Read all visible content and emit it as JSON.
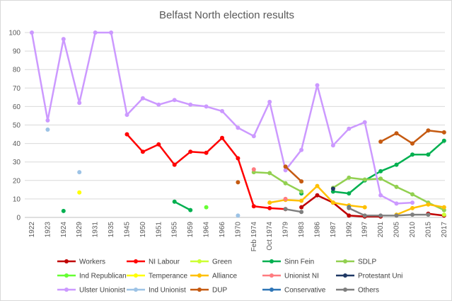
{
  "chart_data": {
    "type": "line",
    "title": "Belfast North election results",
    "xlabel": "",
    "ylabel": "",
    "ylim": [
      0,
      100
    ],
    "yticks": [
      "0",
      "10",
      "20",
      "30",
      "40",
      "50",
      "60",
      "70",
      "80",
      "90",
      "100"
    ],
    "grid": "horizontal",
    "legend_position": "bottom",
    "categories": [
      "1922",
      "1923",
      "1924",
      "1929",
      "1931",
      "1935",
      "1945",
      "1950",
      "1951",
      "1955",
      "1959",
      "1964",
      "1966",
      "1970",
      "Feb 1974",
      "Oct 1974",
      "1979",
      "1983",
      "1986",
      "1987",
      "1992",
      "1997",
      "2001",
      "2005",
      "2010",
      "2015",
      "2017"
    ],
    "series": [
      {
        "name": "Workers",
        "color": "#c00000",
        "values": [
          null,
          null,
          null,
          null,
          null,
          null,
          null,
          null,
          null,
          null,
          null,
          null,
          null,
          null,
          null,
          null,
          null,
          5.5,
          12,
          8,
          1,
          0.5,
          0.5,
          null,
          null,
          2,
          1
        ]
      },
      {
        "name": "NI Labour",
        "color": "#ff0000",
        "values": [
          null,
          null,
          null,
          null,
          null,
          null,
          45,
          35.5,
          39.5,
          28.5,
          35.5,
          35,
          43,
          32,
          6,
          5,
          4.5,
          null,
          null,
          null,
          null,
          null,
          null,
          null,
          null,
          null,
          null
        ]
      },
      {
        "name": "Green",
        "color": "#ccff33",
        "values": [
          null,
          null,
          null,
          null,
          null,
          null,
          null,
          null,
          null,
          null,
          null,
          null,
          null,
          null,
          null,
          null,
          null,
          null,
          null,
          null,
          null,
          null,
          null,
          null,
          null,
          null,
          1.5
        ]
      },
      {
        "name": "Sinn Fein",
        "color": "#00b050",
        "values": [
          null,
          null,
          3.5,
          null,
          null,
          null,
          null,
          null,
          null,
          8.5,
          4,
          null,
          null,
          null,
          null,
          null,
          null,
          13,
          null,
          14,
          13,
          20,
          25,
          28.5,
          34,
          34,
          41.5
        ]
      },
      {
        "name": "SDLP",
        "color": "#92d050",
        "values": [
          null,
          null,
          null,
          null,
          null,
          null,
          null,
          null,
          null,
          null,
          null,
          null,
          null,
          null,
          24.5,
          24,
          18.5,
          14,
          null,
          16,
          21.5,
          20.5,
          21,
          16.5,
          12.5,
          8,
          4
        ]
      },
      {
        "name": "Ind Republican",
        "color": "#66ff33",
        "values": [
          null,
          null,
          null,
          null,
          null,
          null,
          null,
          null,
          null,
          null,
          null,
          5.5,
          null,
          null,
          null,
          null,
          null,
          null,
          null,
          null,
          null,
          null,
          null,
          null,
          null,
          null,
          null
        ]
      },
      {
        "name": "Temperance",
        "color": "#ffff00",
        "values": [
          null,
          null,
          null,
          13.5,
          null,
          null,
          null,
          null,
          null,
          null,
          null,
          null,
          null,
          null,
          null,
          null,
          null,
          null,
          null,
          null,
          null,
          null,
          null,
          null,
          null,
          null,
          null
        ]
      },
      {
        "name": "Alliance",
        "color": "#ffc000",
        "values": [
          null,
          null,
          null,
          null,
          null,
          null,
          null,
          null,
          null,
          null,
          null,
          null,
          null,
          null,
          null,
          8,
          9.5,
          9,
          17,
          8,
          6.5,
          5.5,
          null,
          1.5,
          5,
          7,
          5.5
        ]
      },
      {
        "name": "Unionist NI",
        "color": "#ff7c80",
        "values": [
          null,
          null,
          null,
          null,
          null,
          null,
          null,
          null,
          null,
          null,
          null,
          null,
          null,
          null,
          26,
          null,
          10,
          null,
          null,
          null,
          null,
          null,
          null,
          null,
          null,
          null,
          null
        ]
      },
      {
        "name": "Protestant Uni",
        "color": "#1f3864",
        "values": [
          null,
          null,
          null,
          null,
          null,
          null,
          null,
          null,
          null,
          null,
          null,
          null,
          null,
          null,
          null,
          null,
          null,
          null,
          null,
          15.5,
          null,
          null,
          null,
          null,
          null,
          null,
          null
        ]
      },
      {
        "name": "Ulster Unionist",
        "color": "#cc99ff",
        "values": [
          100,
          52.5,
          96.5,
          62,
          100,
          100,
          55.5,
          64.5,
          61,
          63.5,
          61,
          60,
          57.5,
          48.5,
          44,
          62.5,
          25.5,
          36.5,
          71.5,
          39,
          48,
          51.5,
          12,
          7.5,
          8,
          null,
          null
        ]
      },
      {
        "name": "Ind Unionist",
        "color": "#9dc3e6",
        "values": [
          null,
          47.5,
          null,
          24.5,
          null,
          null,
          null,
          null,
          null,
          null,
          null,
          null,
          null,
          1,
          null,
          null,
          null,
          null,
          null,
          null,
          null,
          null,
          null,
          null,
          null,
          null,
          null
        ]
      },
      {
        "name": "DUP",
        "color": "#c55a11",
        "values": [
          null,
          null,
          null,
          null,
          null,
          null,
          null,
          null,
          null,
          null,
          null,
          null,
          null,
          19,
          null,
          null,
          27.5,
          19.5,
          null,
          null,
          null,
          null,
          41,
          45.5,
          40,
          47,
          46
        ]
      },
      {
        "name": "Conservative",
        "color": "#2e75b6",
        "values": [
          null,
          null,
          null,
          null,
          null,
          null,
          null,
          null,
          null,
          null,
          null,
          null,
          null,
          null,
          null,
          null,
          null,
          null,
          null,
          null,
          5.5,
          null,
          null,
          null,
          null,
          null,
          null
        ]
      },
      {
        "name": "Others",
        "color": "#7f7f7f",
        "values": [
          null,
          null,
          null,
          null,
          null,
          null,
          null,
          null,
          null,
          null,
          null,
          null,
          null,
          null,
          null,
          null,
          4.5,
          3,
          null,
          null,
          5,
          1,
          1,
          1,
          1.5,
          1.5,
          null
        ]
      }
    ]
  }
}
